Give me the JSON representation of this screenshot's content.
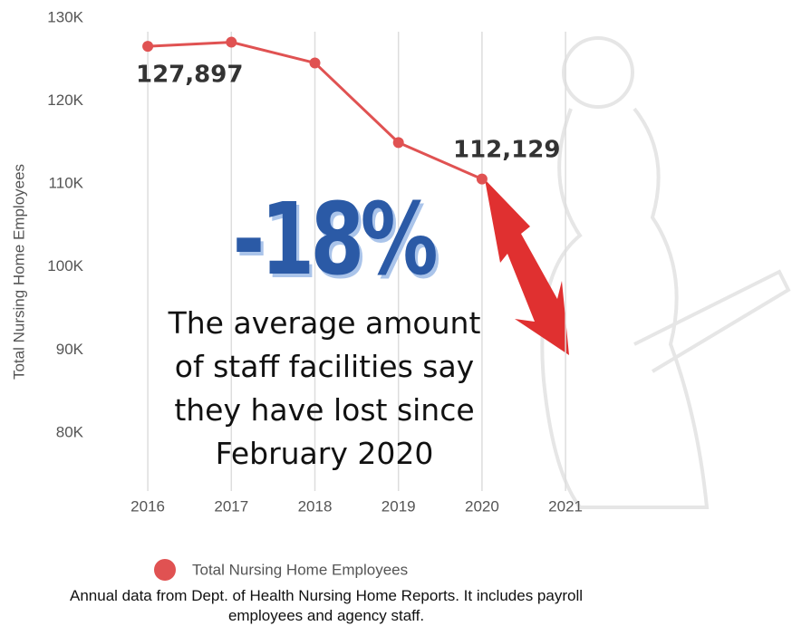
{
  "chart_data": {
    "type": "line",
    "y_axis_label": "Total Nursing Home Employees",
    "categories": [
      "2016",
      "2017",
      "2018",
      "2019",
      "2020",
      "2021"
    ],
    "series": [
      {
        "name": "Total Nursing Home Employees",
        "color": "#e05252",
        "values": [
          126600,
          127100,
          124600,
          115000,
          110600,
          null
        ]
      }
    ],
    "ylim": [
      73000,
      130000
    ],
    "yticks": [
      {
        "value": 80000,
        "label": "80K"
      },
      {
        "value": 90000,
        "label": "90K"
      },
      {
        "value": 100000,
        "label": "100K"
      },
      {
        "value": 110000,
        "label": "110K"
      },
      {
        "value": 120000,
        "label": "120K"
      },
      {
        "value": 130000,
        "label": "130K"
      }
    ],
    "annotations": [
      "127,897",
      "112,129"
    ],
    "headline": "-18%",
    "headline_color": "#2b5aa6",
    "caption_lines": [
      "The average amount",
      "of staff facilities say",
      "they have lost since",
      "February 2020"
    ],
    "footnote": "Annual data from Dept. of Health Nursing Home Reports. It includes payroll employees and agency staff."
  }
}
